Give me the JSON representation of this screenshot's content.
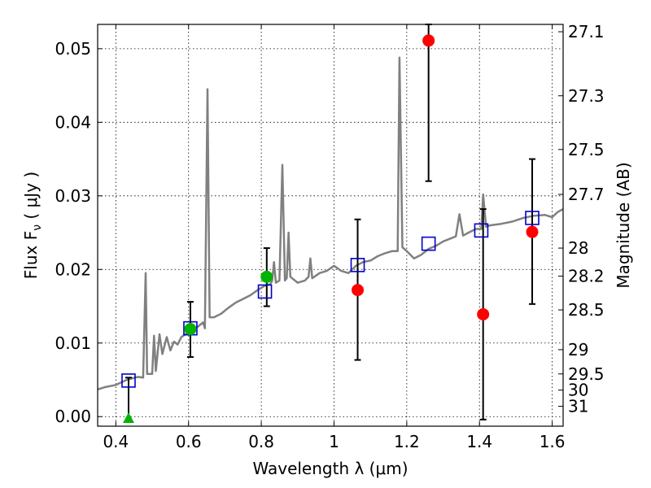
{
  "chart_data": {
    "type": "scatter",
    "xlabel": "Wavelength  λ (μm)",
    "ylabel": "Flux  F",
    "ylabel_sub": "ν",
    "ylabel_unit": " ( μJy )",
    "y2label": "Magnitude (AB)",
    "xlim": [
      0.35,
      1.63
    ],
    "ylim": [
      -0.0013,
      0.0533
    ],
    "grid": true,
    "x_ticks": [
      0.4,
      0.6,
      0.8,
      1.0,
      1.2,
      1.4,
      1.6
    ],
    "x_tick_labels": [
      "0.4",
      "0.6",
      "0.8",
      "1",
      "1.2",
      "1.4",
      "1.6"
    ],
    "y_ticks": [
      0.0,
      0.01,
      0.02,
      0.03,
      0.04,
      0.05
    ],
    "y_tick_labels": [
      "0.00",
      "0.01",
      "0.02",
      "0.03",
      "0.04",
      "0.05"
    ],
    "mag_ticks": [
      {
        "label": "27.1",
        "flux": 0.0523
      },
      {
        "label": "27.3",
        "flux": 0.0436
      },
      {
        "label": "27.5",
        "flux": 0.0363
      },
      {
        "label": "27.7",
        "flux": 0.0302
      },
      {
        "label": "28",
        "flux": 0.0229
      },
      {
        "label": "28.2",
        "flux": 0.0191
      },
      {
        "label": "28.5",
        "flux": 0.0145
      },
      {
        "label": "29",
        "flux": 0.0091
      },
      {
        "label": "29.5",
        "flux": 0.0058
      },
      {
        "label": "30",
        "flux": 0.0036
      },
      {
        "label": "31",
        "flux": 0.0014
      }
    ],
    "colors": {
      "spectrum": "#808080",
      "model": "#0000cc",
      "red": "#ff0000",
      "green": "#00b400",
      "errbar": "#000000"
    },
    "spectrum": [
      [
        0.35,
        0.0037
      ],
      [
        0.37,
        0.004
      ],
      [
        0.4,
        0.0043
      ],
      [
        0.43,
        0.005
      ],
      [
        0.46,
        0.0054
      ],
      [
        0.475,
        0.0053
      ],
      [
        0.482,
        0.0195
      ],
      [
        0.486,
        0.0058
      ],
      [
        0.5,
        0.0058
      ],
      [
        0.505,
        0.011
      ],
      [
        0.51,
        0.0062
      ],
      [
        0.52,
        0.0112
      ],
      [
        0.528,
        0.0085
      ],
      [
        0.54,
        0.0108
      ],
      [
        0.55,
        0.009
      ],
      [
        0.56,
        0.0102
      ],
      [
        0.57,
        0.0098
      ],
      [
        0.58,
        0.0108
      ],
      [
        0.6,
        0.0115
      ],
      [
        0.62,
        0.012
      ],
      [
        0.64,
        0.0128
      ],
      [
        0.645,
        0.012
      ],
      [
        0.652,
        0.0445
      ],
      [
        0.658,
        0.0135
      ],
      [
        0.67,
        0.0135
      ],
      [
        0.69,
        0.014
      ],
      [
        0.71,
        0.0148
      ],
      [
        0.73,
        0.0155
      ],
      [
        0.75,
        0.016
      ],
      [
        0.77,
        0.0165
      ],
      [
        0.79,
        0.0172
      ],
      [
        0.81,
        0.0178
      ],
      [
        0.825,
        0.018
      ],
      [
        0.83,
        0.0185
      ],
      [
        0.835,
        0.021
      ],
      [
        0.84,
        0.0182
      ],
      [
        0.85,
        0.0185
      ],
      [
        0.858,
        0.0342
      ],
      [
        0.865,
        0.0185
      ],
      [
        0.87,
        0.0188
      ],
      [
        0.875,
        0.025
      ],
      [
        0.88,
        0.019
      ],
      [
        0.9,
        0.0182
      ],
      [
        0.92,
        0.0185
      ],
      [
        0.93,
        0.019
      ],
      [
        0.935,
        0.0215
      ],
      [
        0.94,
        0.0188
      ],
      [
        0.96,
        0.0195
      ],
      [
        0.98,
        0.0198
      ],
      [
        1.0,
        0.0205
      ],
      [
        1.02,
        0.0198
      ],
      [
        1.04,
        0.0195
      ],
      [
        1.06,
        0.0205
      ],
      [
        1.08,
        0.021
      ],
      [
        1.1,
        0.0212
      ],
      [
        1.12,
        0.0218
      ],
      [
        1.14,
        0.0222
      ],
      [
        1.16,
        0.0225
      ],
      [
        1.175,
        0.0225
      ],
      [
        1.18,
        0.0488
      ],
      [
        1.188,
        0.023
      ],
      [
        1.2,
        0.0225
      ],
      [
        1.22,
        0.0215
      ],
      [
        1.24,
        0.022
      ],
      [
        1.26,
        0.0228
      ],
      [
        1.28,
        0.0232
      ],
      [
        1.3,
        0.0238
      ],
      [
        1.32,
        0.0242
      ],
      [
        1.335,
        0.0245
      ],
      [
        1.345,
        0.0275
      ],
      [
        1.355,
        0.0246
      ],
      [
        1.37,
        0.025
      ],
      [
        1.39,
        0.0255
      ],
      [
        1.405,
        0.0255
      ],
      [
        1.41,
        0.0302
      ],
      [
        1.418,
        0.0258
      ],
      [
        1.43,
        0.026
      ],
      [
        1.46,
        0.0262
      ],
      [
        1.49,
        0.0265
      ],
      [
        1.52,
        0.027
      ],
      [
        1.55,
        0.0273
      ],
      [
        1.58,
        0.0274
      ],
      [
        1.6,
        0.0271
      ],
      [
        1.615,
        0.0278
      ],
      [
        1.63,
        0.0282
      ]
    ],
    "model_points": [
      {
        "x": 0.435,
        "y": 0.0049
      },
      {
        "x": 0.605,
        "y": 0.012
      },
      {
        "x": 0.81,
        "y": 0.017
      },
      {
        "x": 1.065,
        "y": 0.0206
      },
      {
        "x": 1.26,
        "y": 0.0235
      },
      {
        "x": 1.405,
        "y": 0.0253
      },
      {
        "x": 1.545,
        "y": 0.027
      }
    ],
    "red_points": [
      {
        "x": 1.065,
        "y": 0.0172,
        "ylo": 0.0077,
        "yhi": 0.0268
      },
      {
        "x": 1.26,
        "y": 0.0511,
        "ylo": 0.032,
        "yhi": 0.0533
      },
      {
        "x": 1.41,
        "y": 0.0139,
        "ylo": -0.0004,
        "yhi": 0.0282
      },
      {
        "x": 1.545,
        "y": 0.0251,
        "ylo": 0.0153,
        "yhi": 0.035
      }
    ],
    "green_points": [
      {
        "x": 0.605,
        "y": 0.0119,
        "ylo": 0.0081,
        "yhi": 0.0156
      },
      {
        "x": 0.815,
        "y": 0.019,
        "ylo": 0.015,
        "yhi": 0.0229
      }
    ],
    "green_triangles": [
      {
        "x": 0.435,
        "y": -0.0003,
        "yhi": 0.0053
      }
    ]
  }
}
